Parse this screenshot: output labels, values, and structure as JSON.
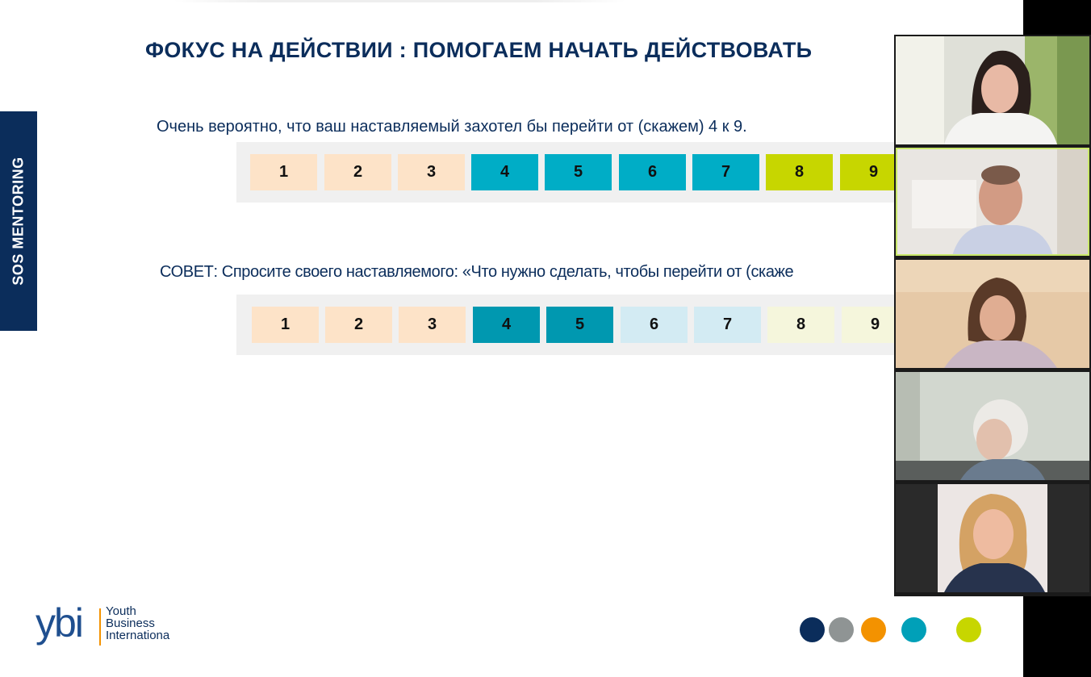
{
  "slide": {
    "side_label": "SOS MENTORING",
    "title": "ФОКУС НА ДЕЙСТВИИ : ПОМОГАЕМ НАЧАТЬ ДЕЙСТВОВАТЬ",
    "question1": "Очень вероятно, что ваш наставляемый захотел бы перейти от (скажем) 4 к 9.",
    "question2": "СОВЕТ: Спросите своего наставляемого: «Что нужно сделать, чтобы перейти от (скаже"
  },
  "scale1": {
    "cells": [
      {
        "label": "1",
        "color": "#fde3c8"
      },
      {
        "label": "2",
        "color": "#fde3c8"
      },
      {
        "label": "3",
        "color": "#fde3c8"
      },
      {
        "label": "4",
        "color": "#00adc6"
      },
      {
        "label": "5",
        "color": "#00adc6"
      },
      {
        "label": "6",
        "color": "#00adc6"
      },
      {
        "label": "7",
        "color": "#00adc6"
      },
      {
        "label": "8",
        "color": "#c7d600"
      },
      {
        "label": "9",
        "color": "#c7d600"
      }
    ]
  },
  "scale2": {
    "cells": [
      {
        "label": "1",
        "color": "#fde3c8"
      },
      {
        "label": "2",
        "color": "#fde3c8"
      },
      {
        "label": "3",
        "color": "#fde3c8"
      },
      {
        "label": "4",
        "color": "#0098b0"
      },
      {
        "label": "5",
        "color": "#0098b0"
      },
      {
        "label": "6",
        "color": "#d3ebf3"
      },
      {
        "label": "7",
        "color": "#d3ebf3"
      },
      {
        "label": "8",
        "color": "#f5f6dc"
      },
      {
        "label": "9",
        "color": "#f5f6dc"
      }
    ]
  },
  "logo": {
    "mark": "ybi",
    "line1": "Youth",
    "line2": "Business",
    "line3": "Internationa"
  },
  "brand_dots": [
    "#0b2d5b",
    "#8f9494",
    "#f39200",
    "#00a0b8",
    "#c7d600"
  ],
  "participants": [
    {
      "name": "participant-1",
      "active": false
    },
    {
      "name": "participant-2",
      "active": true
    },
    {
      "name": "participant-3",
      "active": false
    },
    {
      "name": "participant-4",
      "active": false
    },
    {
      "name": "participant-5",
      "active": false
    }
  ]
}
